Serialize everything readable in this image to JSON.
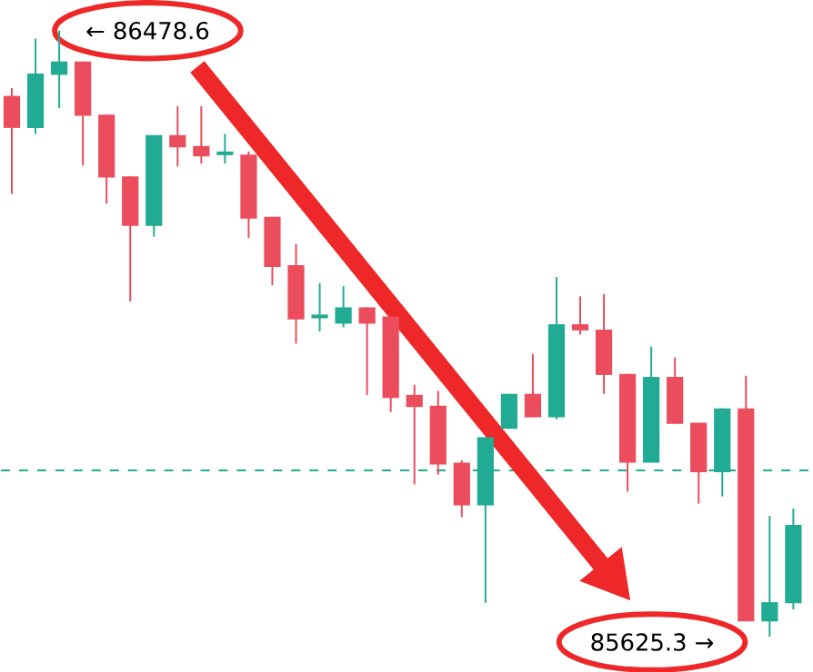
{
  "chart_data": {
    "type": "candlestick",
    "categories": [
      null,
      null,
      null,
      null,
      null,
      null,
      null,
      null,
      null,
      null,
      null,
      null,
      null,
      null,
      null,
      null,
      null,
      null,
      null,
      null,
      null,
      null,
      null,
      null,
      null,
      null,
      null,
      null,
      null,
      null,
      null,
      null,
      null,
      null
    ],
    "ohlc": [
      [
        86386.7,
        86397.7,
        86248.9,
        86341.6
      ],
      [
        86341.6,
        86467.4,
        86333.2,
        86418.1
      ],
      [
        86416.3,
        86478.6,
        86369.6,
        86435.2
      ],
      [
        86435.2,
        86435.2,
        86288.8,
        86358.7
      ],
      [
        86360.2,
        86360.2,
        86235.2,
        86271.9
      ],
      [
        86273.4,
        86273.4,
        86097.4,
        86203.8
      ],
      [
        86203.8,
        86331.4,
        86188.5,
        86331.4
      ],
      [
        86331.4,
        86372.2,
        86287.2,
        86314.3
      ],
      [
        86316.1,
        86372.2,
        86291.3,
        86301.5
      ],
      [
        86303.3,
        86333.2,
        86291.3,
        86308.4
      ],
      [
        86304.1,
        86308.4,
        86186.7,
        86214.0
      ],
      [
        86216.5,
        86216.5,
        86120.3,
        86145.9
      ],
      [
        86148.4,
        86178.3,
        86037.9,
        86071.9
      ],
      [
        86073.6,
        86122.9,
        86055.0,
        86078.8
      ],
      [
        86066.0,
        86118.8,
        86060.9,
        86089.0
      ],
      [
        86089.0,
        86089.0,
        85965.7,
        86066.0
      ],
      [
        86076.2,
        86076.2,
        85941.7,
        85961.4
      ],
      [
        85965.7,
        85980.0,
        85839.7,
        85948.6
      ],
      [
        85950.4,
        85971.6,
        85853.4,
        85867.7
      ],
      [
        85870.3,
        85873.8,
        85793.7,
        85810.1
      ],
      [
        85810.1,
        85906.0,
        85673.0,
        85906.0
      ],
      [
        85918.0,
        85967.2,
        85918.0,
        85967.2
      ],
      [
        85967.2,
        86023.4,
        85934.1,
        85934.1
      ],
      [
        85934.1,
        86131.6,
        85931.5,
        86065.2
      ],
      [
        86065.2,
        86104.3,
        86050.7,
        86056.5
      ],
      [
        86057.6,
        86107.6,
        85967.2,
        85993.8
      ],
      [
        85995.3,
        85995.3,
        85829.4,
        85870.3
      ],
      [
        85870.3,
        86033.6,
        85870.3,
        85991.2
      ],
      [
        85991.2,
        86018.3,
        85924.9,
        85924.9
      ],
      [
        85926.4,
        85926.4,
        85812.6,
        85856.7
      ],
      [
        85856.7,
        85946.8,
        85822.8,
        85946.8
      ],
      [
        85946.8,
        85992.8,
        85646.7,
        85646.7
      ],
      [
        85646.7,
        85795.5,
        85625.3,
        85673.8
      ],
      [
        85672.3,
        85805.7,
        85663.6,
        85782.7
      ]
    ],
    "colors": [
      "#eb4d5c",
      "#22ab94",
      "#22ab94",
      "#eb4d5c",
      "#eb4d5c",
      "#eb4d5c",
      "#22ab94",
      "#eb4d5c",
      "#eb4d5c",
      "#22ab94",
      "#eb4d5c",
      "#eb4d5c",
      "#eb4d5c",
      "#22ab94",
      "#22ab94",
      "#eb4d5c",
      "#eb4d5c",
      "#eb4d5c",
      "#eb4d5c",
      "#eb4d5c",
      "#22ab94",
      "#22ab94",
      "#eb4d5c",
      "#22ab94",
      "#eb4d5c",
      "#eb4d5c",
      "#eb4d5c",
      "#22ab94",
      "#eb4d5c",
      "#eb4d5c",
      "#22ab94",
      "#eb4d5c",
      "#22ab94",
      "#22ab94"
    ],
    "ref_lines": [
      {
        "axis": "y",
        "value": 85859.3,
        "color": "#22ab94",
        "line_style": "dashed"
      }
    ],
    "annotations": [
      "← 86478.6",
      "85625.3 →"
    ]
  }
}
